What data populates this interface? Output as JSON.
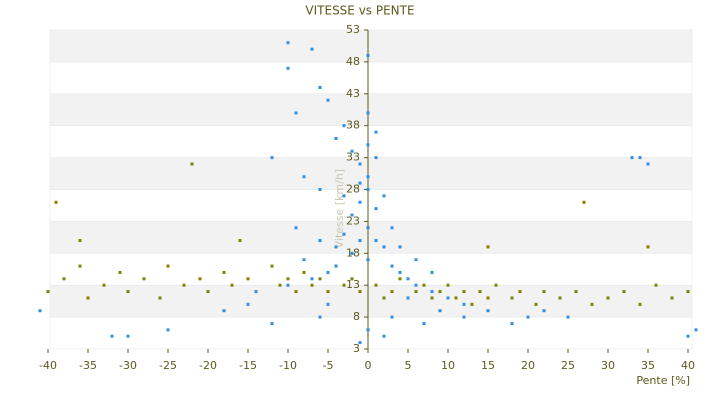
{
  "chart_data": {
    "type": "scatter",
    "title": "VITESSE vs PENTE",
    "x_label": "Pente [%]",
    "y_label": "Vitesse [km/h]",
    "xlim": [
      -40,
      40
    ],
    "ylim": [
      3,
      53
    ],
    "xticks": [
      -40,
      -35,
      -30,
      -25,
      -20,
      -15,
      -10,
      -5,
      0,
      5,
      10,
      15,
      20,
      25,
      30,
      35,
      40
    ],
    "yticks": [
      3,
      8,
      13,
      18,
      23,
      28,
      33,
      38,
      43,
      48,
      53
    ],
    "grid": true,
    "series": [
      {
        "color": "#7f7f00",
        "x": [
          -40,
          -38,
          -36,
          -35,
          -33,
          -31,
          -30,
          -28,
          -26,
          -25,
          -23,
          -21,
          -20,
          -18,
          -17,
          -15,
          -14,
          -12,
          -11,
          -10,
          -9,
          -8,
          -7,
          -6,
          -5,
          -4,
          -3,
          -2,
          -1,
          1,
          2,
          3,
          4,
          5,
          6,
          7,
          8,
          9,
          10,
          11,
          12,
          13,
          14,
          15,
          16,
          18,
          19,
          21,
          22,
          24,
          26,
          28,
          30,
          32,
          34,
          36,
          38,
          40,
          -39,
          27,
          -22,
          -16,
          15,
          -36,
          35
        ],
        "values": [
          12,
          14,
          16,
          11,
          13,
          15,
          12,
          14,
          11,
          16,
          13,
          14,
          12,
          15,
          13,
          14,
          12,
          16,
          13,
          14,
          12,
          15,
          13,
          14,
          12,
          16,
          13,
          14,
          12,
          13,
          11,
          12,
          14,
          11,
          12,
          13,
          11,
          12,
          13,
          11,
          12,
          10,
          12,
          11,
          13,
          11,
          12,
          10,
          12,
          11,
          12,
          10,
          11,
          12,
          10,
          13,
          11,
          12,
          26,
          26,
          32,
          20,
          19,
          20,
          19
        ]
      },
      {
        "color": "#2f8fe0",
        "x": [
          -10,
          -10,
          -7,
          -6,
          -5,
          -9,
          -3,
          -4,
          0,
          1,
          -2,
          -1,
          -12,
          -8,
          -6,
          -3,
          -1,
          0,
          0,
          1,
          0,
          -1,
          1,
          2,
          -2,
          0,
          3,
          4,
          -4,
          -5,
          5,
          -7,
          6,
          8,
          10,
          -10,
          -14,
          12,
          15,
          -15,
          -18,
          20,
          -25,
          -30,
          -32,
          33,
          34,
          35,
          2,
          -1,
          0,
          3,
          -6,
          7,
          -12,
          12,
          25,
          40,
          41,
          -41,
          0,
          0,
          1,
          -1,
          2,
          -2,
          3,
          -3,
          4,
          -4,
          6,
          8,
          -8,
          -6,
          -9,
          5,
          9,
          -5,
          18,
          22
        ],
        "values": [
          51,
          47,
          50,
          44,
          42,
          40,
          38,
          36,
          49,
          37,
          34,
          32,
          33,
          30,
          28,
          27,
          26,
          30,
          28,
          25,
          22,
          20,
          20,
          19,
          18,
          17,
          16,
          15,
          16,
          15,
          14,
          14,
          13,
          12,
          11,
          13,
          12,
          10,
          9,
          10,
          9,
          8,
          6,
          5,
          5,
          33,
          33,
          32,
          5,
          4,
          6,
          8,
          8,
          7,
          7,
          8,
          8,
          5,
          6,
          9,
          40,
          35,
          33,
          29,
          27,
          24,
          22,
          21,
          19,
          19,
          17,
          15,
          17,
          20,
          22,
          11,
          9,
          10,
          7,
          9
        ]
      }
    ]
  }
}
